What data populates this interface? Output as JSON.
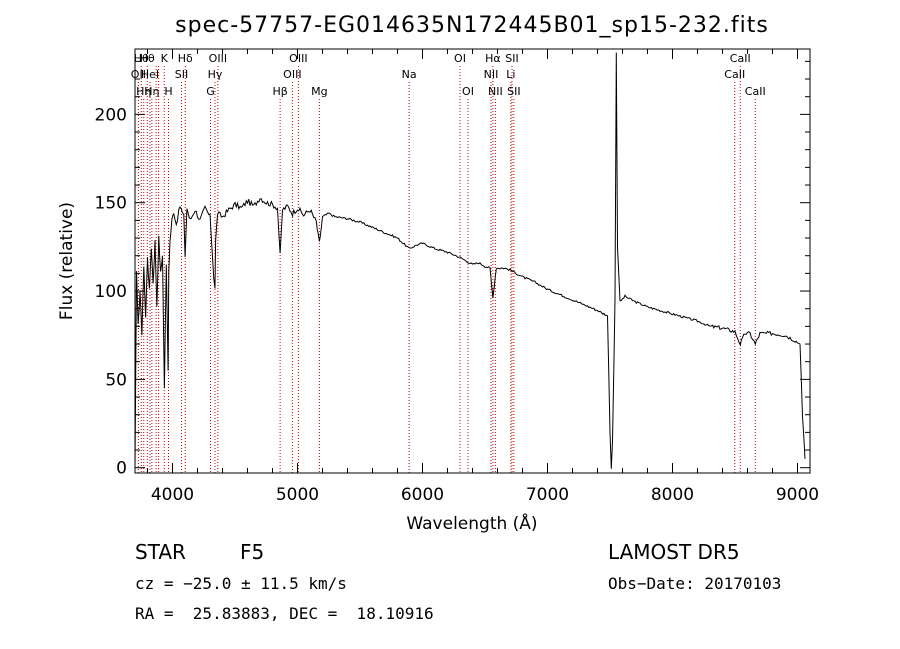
{
  "chart_data": {
    "type": "line",
    "title": "spec-57757-EG014635N172445B01_sp15-232.fits",
    "xlabel": "Wavelength (Å)",
    "ylabel": "Flux (relative)",
    "xlim": [
      3700,
      9100
    ],
    "ylim": [
      -3,
      237
    ],
    "x_ticks": [
      4000,
      5000,
      6000,
      7000,
      8000,
      9000
    ],
    "y_ticks": [
      0,
      50,
      100,
      150,
      200
    ],
    "grid": false,
    "series": [
      {
        "x": [
          3700,
          3712,
          3725,
          3740,
          3755,
          3770,
          3785,
          3800,
          3815,
          3830,
          3845,
          3860,
          3875,
          3890,
          3905,
          3920,
          3935,
          3950,
          3965,
          3970,
          3980,
          3995,
          4010,
          4030,
          4060,
          4090,
          4101,
          4115,
          4140,
          4180,
          4220,
          4260,
          4300,
          4320,
          4330,
          4340,
          4345,
          4360,
          4400,
          4450,
          4500,
          4550,
          4600,
          4650,
          4700,
          4750,
          4800,
          4840,
          4861,
          4880,
          4920,
          4960,
          5000,
          5050,
          5100,
          5150,
          5175,
          5200,
          5250,
          5300,
          5400,
          5500,
          5600,
          5700,
          5800,
          5893,
          5950,
          6000,
          6100,
          6200,
          6300,
          6350,
          6400,
          6450,
          6500,
          6540,
          6563,
          6590,
          6650,
          6700,
          6800,
          6900,
          7000,
          7100,
          7200,
          7300,
          7400,
          7480,
          7500,
          7510,
          7520,
          7540,
          7550,
          7560,
          7580,
          7620,
          7700,
          7800,
          7900,
          8000,
          8100,
          8200,
          8300,
          8400,
          8500,
          8542,
          8580,
          8620,
          8662,
          8700,
          8800,
          8900,
          8980,
          9020,
          9040,
          9060
        ],
        "y": [
          0,
          110,
          80,
          100,
          75,
          115,
          85,
          120,
          100,
          125,
          105,
          128,
          92,
          130,
          110,
          120,
          45,
          115,
          55,
          112,
          128,
          140,
          145,
          138,
          148,
          142,
          120,
          147,
          140,
          146,
          140,
          147,
          142,
          120,
          108,
          102,
          128,
          144,
          142,
          146,
          149,
          147,
          151,
          148,
          153,
          150,
          149,
          147,
          120,
          146,
          148,
          144,
          147,
          143,
          146,
          139,
          127,
          142,
          144,
          142,
          141,
          139,
          136,
          133,
          130,
          124,
          126,
          127,
          124,
          122,
          119,
          117,
          115,
          116,
          114,
          113,
          96,
          113,
          113,
          112,
          108,
          105,
          101,
          98,
          95,
          92,
          89,
          86,
          20,
          0,
          15,
          95,
          235,
          125,
          94,
          97,
          94,
          91,
          89,
          87,
          85,
          83,
          80,
          79,
          77,
          70,
          76,
          76,
          70,
          76,
          76,
          75,
          72,
          70,
          30,
          5
        ]
      }
    ],
    "lines": [
      {
        "x": 3727,
        "label": "OII",
        "row": 1
      },
      {
        "x": 3750,
        "label": "Hθ",
        "row": 0
      },
      {
        "x": 3770,
        "label": "Hη",
        "row": 2
      },
      {
        "x": 3798,
        "label": "Hθ",
        "row": 0
      },
      {
        "x": 3820,
        "label": "HeI",
        "row": 1
      },
      {
        "x": 3835,
        "label": "Hη",
        "row": 2
      },
      {
        "x": 3869,
        "label": "",
        "row": 0
      },
      {
        "x": 3889,
        "label": "",
        "row": 0
      },
      {
        "x": 3934,
        "label": "K",
        "row": 0
      },
      {
        "x": 3968,
        "label": "H",
        "row": 2
      },
      {
        "x": 4072,
        "label": "SII",
        "row": 1
      },
      {
        "x": 4102,
        "label": "Hδ",
        "row": 0
      },
      {
        "x": 4304,
        "label": "G",
        "row": 2
      },
      {
        "x": 4340,
        "label": "Hγ",
        "row": 1
      },
      {
        "x": 4363,
        "label": "OIII",
        "row": 0
      },
      {
        "x": 4861,
        "label": "Hβ",
        "row": 2
      },
      {
        "x": 4959,
        "label": "OIII",
        "row": 1
      },
      {
        "x": 5007,
        "label": "OIII",
        "row": 0
      },
      {
        "x": 5175,
        "label": "Mg",
        "row": 2
      },
      {
        "x": 5893,
        "label": "Na",
        "row": 1
      },
      {
        "x": 6300,
        "label": "OI",
        "row": 0
      },
      {
        "x": 6364,
        "label": "OI",
        "row": 2
      },
      {
        "x": 6548,
        "label": "NII",
        "row": 1
      },
      {
        "x": 6563,
        "label": "Hα",
        "row": 0
      },
      {
        "x": 6583,
        "label": "NII",
        "row": 2
      },
      {
        "x": 6707,
        "label": "Li",
        "row": 1
      },
      {
        "x": 6716,
        "label": "SII",
        "row": 0
      },
      {
        "x": 6731,
        "label": "SII",
        "row": 2
      },
      {
        "x": 8498,
        "label": "CaII",
        "row": 1
      },
      {
        "x": 8542,
        "label": "CaII",
        "row": 0
      },
      {
        "x": 8662,
        "label": "CaII",
        "row": 2
      }
    ]
  },
  "info": {
    "class": "STAR",
    "subclass": "F5",
    "survey": "LAMOST DR5",
    "cz": "cz = −25.0 ± 11.5 km/s",
    "obs_date": "Obs−Date: 20170103",
    "coords": "RA =  25.83883, DEC =  18.10916"
  }
}
